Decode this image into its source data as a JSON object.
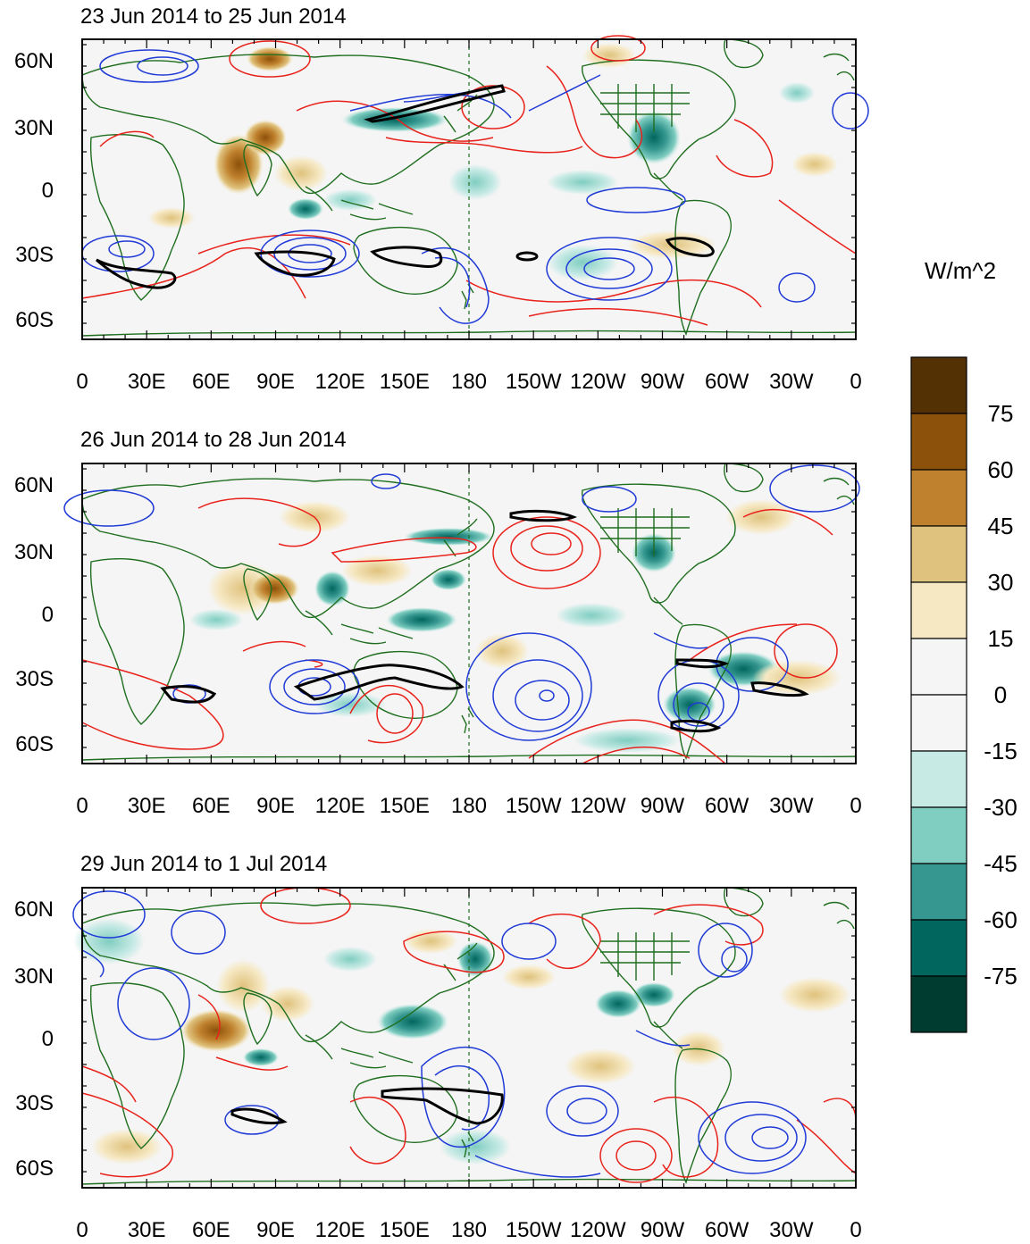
{
  "figure": {
    "units_label": "W/m^2",
    "colors": {
      "land_outline": "#1f6e1f",
      "positive_contour": "#e8221b",
      "negative_contour": "#1f3ad6",
      "highlight_contour": "#000000",
      "dateline": "#1f6e1f"
    },
    "x_ticks": [
      "0",
      "30E",
      "60E",
      "90E",
      "120E",
      "150E",
      "180",
      "150W",
      "120W",
      "90W",
      "60W",
      "30W",
      "0"
    ],
    "y_ticks": [
      "60N",
      "30N",
      "0",
      "30S",
      "60S"
    ],
    "panels": [
      {
        "title": "23 Jun 2014 to 25 Jun 2014"
      },
      {
        "title": "26 Jun 2014 to 28 Jun 2014"
      },
      {
        "title": "29 Jun 2014 to 1 Jul 2014"
      }
    ]
  },
  "colorbar": {
    "labels": [
      "75",
      "60",
      "45",
      "30",
      "15",
      "0",
      "-15",
      "-30",
      "-45",
      "-60",
      "-75"
    ],
    "colors": [
      "#543005",
      "#8c510a",
      "#bf812d",
      "#dfc27d",
      "#f6e8c3",
      "#f5f5f5",
      "#f5f5f5",
      "#c7eae5",
      "#80cdc1",
      "#35978f",
      "#01665e",
      "#003c30"
    ]
  }
}
